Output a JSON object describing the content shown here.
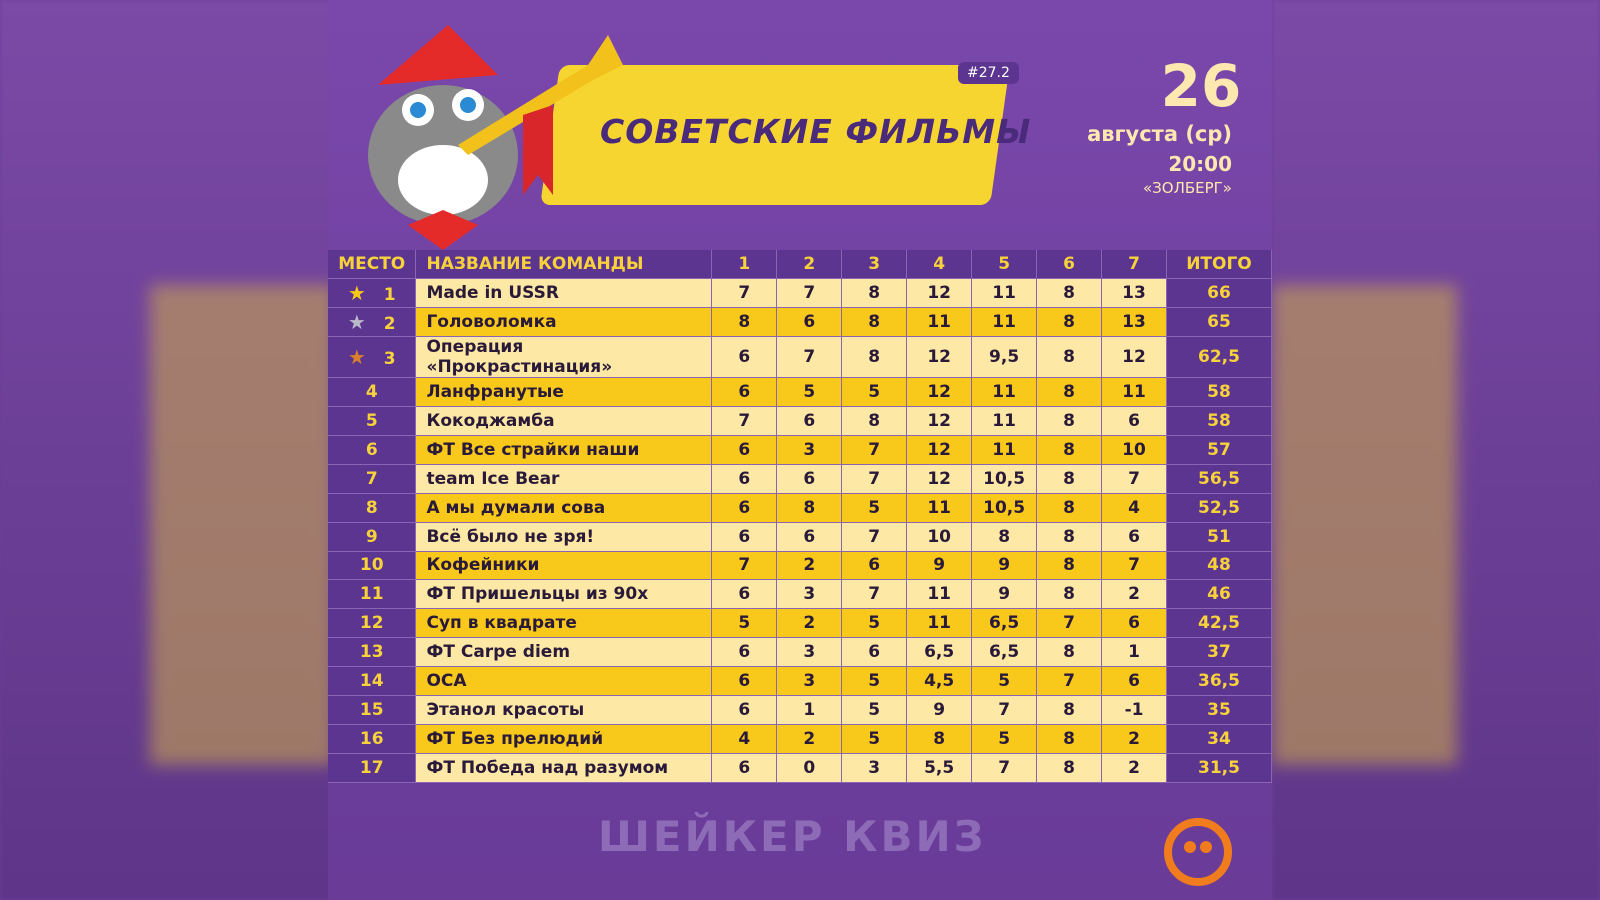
{
  "header": {
    "badge": "#27.2",
    "title": "СОВЕТСКИЕ ФИЛЬМЫ",
    "day": "26",
    "month": "августа (ср)",
    "time": "20:00",
    "venue": "«ЗОЛБЕРГ»"
  },
  "table": {
    "columns": [
      "МЕСТО",
      "НАЗВАНИЕ КОМАНДЫ",
      "1",
      "2",
      "3",
      "4",
      "5",
      "6",
      "7",
      "ИТОГО"
    ],
    "rows": [
      [
        "1",
        "Made in USSR",
        "7",
        "7",
        "8",
        "12",
        "11",
        "8",
        "13",
        "66"
      ],
      [
        "2",
        "Головоломка",
        "8",
        "6",
        "8",
        "11",
        "11",
        "8",
        "13",
        "65"
      ],
      [
        "3",
        "Операция «Прокрастинация»",
        "6",
        "7",
        "8",
        "12",
        "9,5",
        "8",
        "12",
        "62,5"
      ],
      [
        "4",
        "Ланфранутые",
        "6",
        "5",
        "5",
        "12",
        "11",
        "8",
        "11",
        "58"
      ],
      [
        "5",
        "Кокоджамба",
        "7",
        "6",
        "8",
        "12",
        "11",
        "8",
        "6",
        "58"
      ],
      [
        "6",
        "ФТ Все страйки наши",
        "6",
        "3",
        "7",
        "12",
        "11",
        "8",
        "10",
        "57"
      ],
      [
        "7",
        "team Ice Bear",
        "6",
        "6",
        "7",
        "12",
        "10,5",
        "8",
        "7",
        "56,5"
      ],
      [
        "8",
        "А мы думали сова",
        "6",
        "8",
        "5",
        "11",
        "10,5",
        "8",
        "4",
        "52,5"
      ],
      [
        "9",
        "Всё было не зря!",
        "6",
        "6",
        "7",
        "10",
        "8",
        "8",
        "6",
        "51"
      ],
      [
        "10",
        "Кофейники",
        "7",
        "2",
        "6",
        "9",
        "9",
        "8",
        "7",
        "48"
      ],
      [
        "11",
        "ФТ Пришельцы из 90х",
        "6",
        "3",
        "7",
        "11",
        "9",
        "8",
        "2",
        "46"
      ],
      [
        "12",
        "Суп в квадрате",
        "5",
        "2",
        "5",
        "11",
        "6,5",
        "7",
        "6",
        "42,5"
      ],
      [
        "13",
        "ФТ Carpe diem",
        "6",
        "3",
        "6",
        "6,5",
        "6,5",
        "8",
        "1",
        "37"
      ],
      [
        "14",
        "ОСА",
        "6",
        "3",
        "5",
        "4,5",
        "5",
        "7",
        "6",
        "36,5"
      ],
      [
        "15",
        "Этанол красоты",
        "6",
        "1",
        "5",
        "9",
        "7",
        "8",
        "-1",
        "35"
      ],
      [
        "16",
        "ФТ Без прелюдий",
        "4",
        "2",
        "5",
        "8",
        "5",
        "8",
        "2",
        "34"
      ],
      [
        "17",
        "ФТ Победа над разумом",
        "6",
        "0",
        "3",
        "5,5",
        "7",
        "8",
        "2",
        "31,5"
      ]
    ]
  },
  "footer": {
    "brand": "ШЕЙКЕР КВИЗ"
  }
}
